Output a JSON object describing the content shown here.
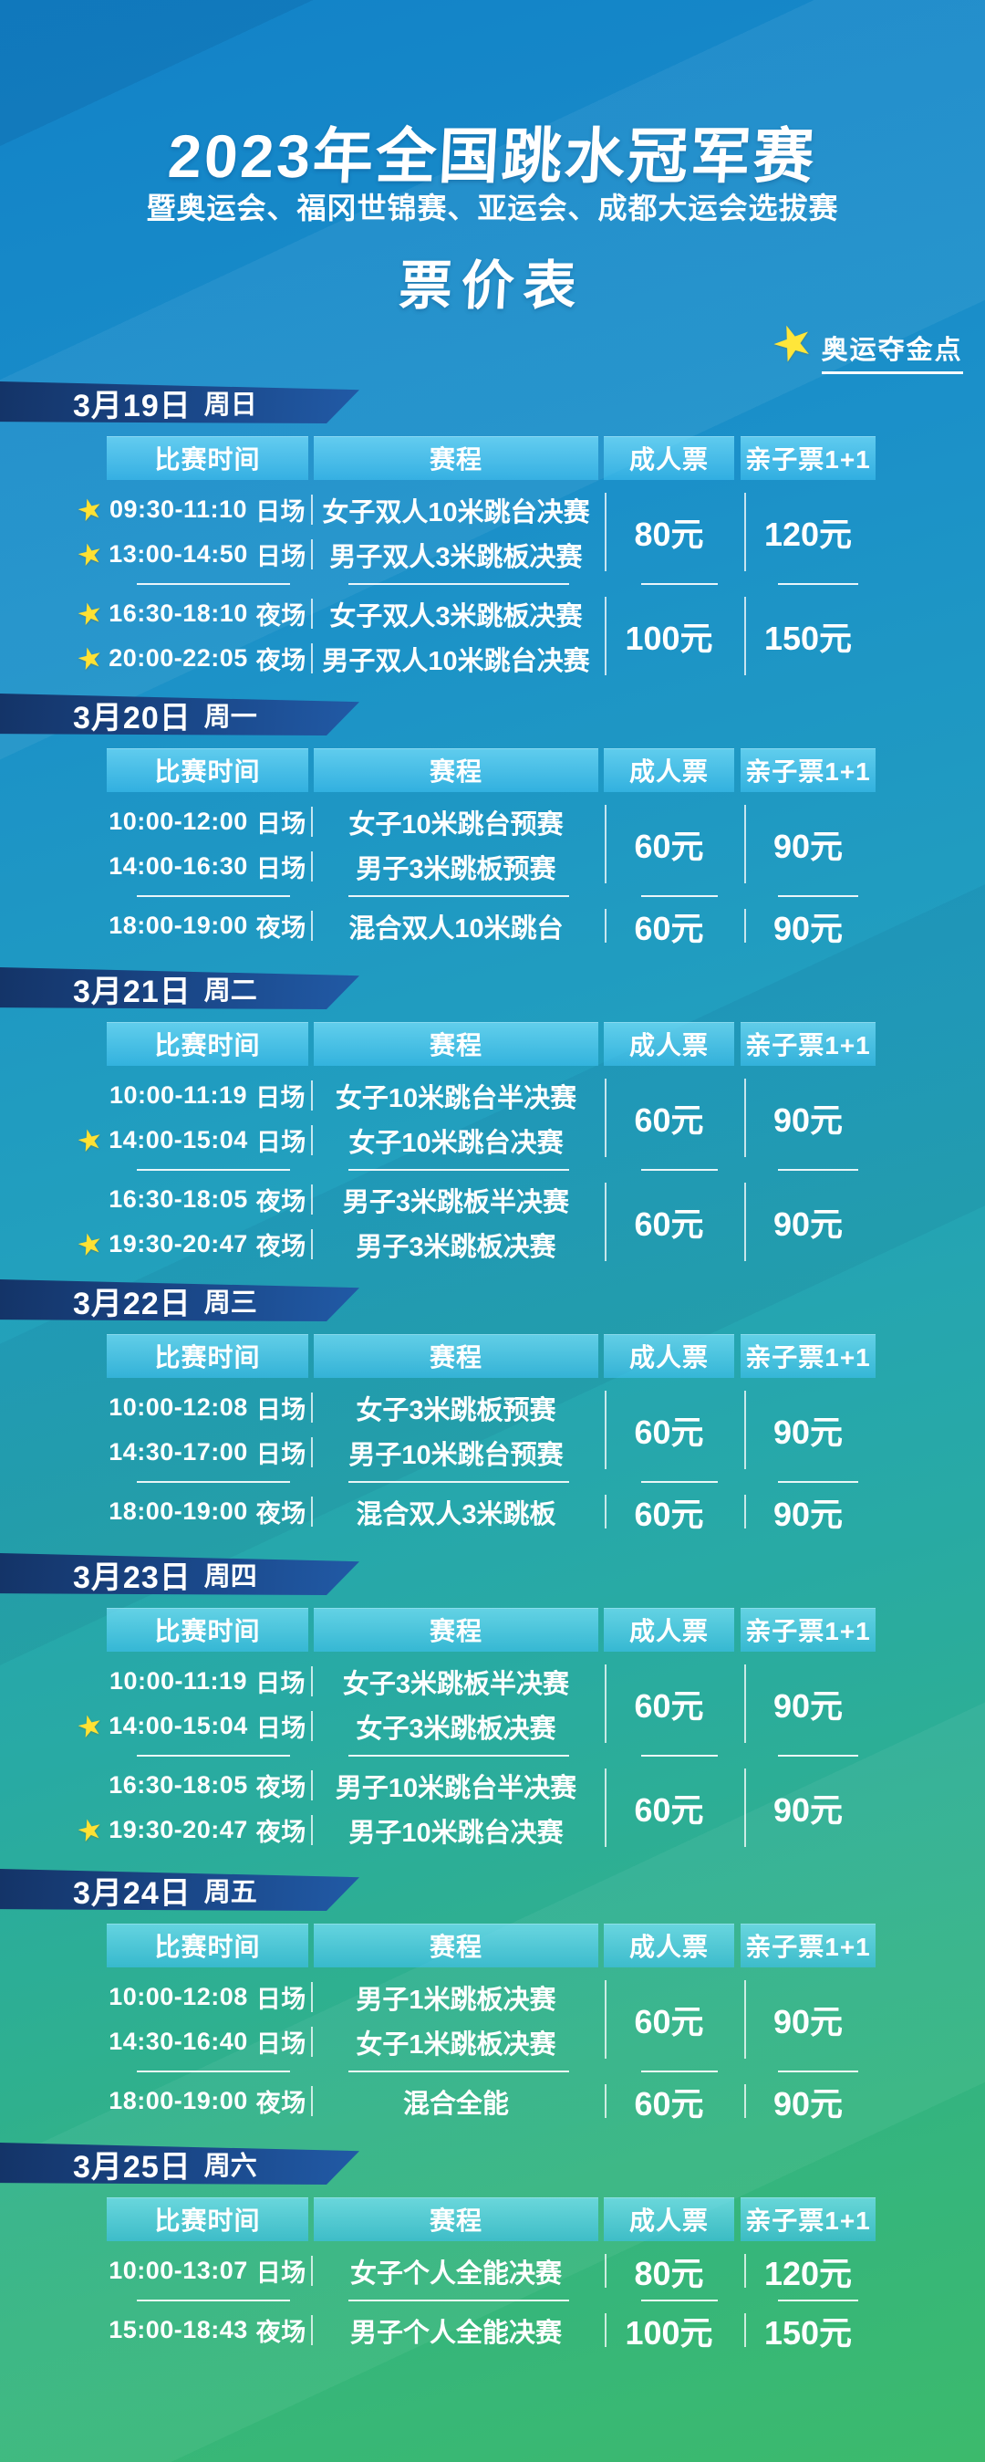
{
  "poster": {
    "title": "2023年全国跳水冠军赛",
    "subtitle": "暨奥运会、福冈世锦赛、亚运会、成都大运会选拔赛",
    "table_title": "票价表",
    "legend": {
      "icon": "gold-star-icon",
      "star_glyph": "★",
      "label": "奥运夺金点"
    }
  },
  "table": {
    "columns": {
      "time": "比赛时间",
      "event": "赛程",
      "adult": "成人票",
      "family": "亲子票1+1"
    }
  },
  "colors": {
    "background_top": "#1282c8",
    "background_bottom": "#3cba6c",
    "banner_navy": "#1b4a8d",
    "header_cell_cyan": "#45b7eb",
    "star_yellow": "#ffe133",
    "text": "#ffffff"
  },
  "days": [
    {
      "date": "3月19日",
      "weekday": "周日",
      "groups": [
        {
          "rows": [
            {
              "star": true,
              "time": "09:30-11:10",
              "session": "日场",
              "event": "女子双人10米跳台决赛"
            },
            {
              "star": true,
              "time": "13:00-14:50",
              "session": "日场",
              "event": "男子双人3米跳板决赛"
            }
          ],
          "adult_price": "80元",
          "family_price": "120元"
        },
        {
          "rows": [
            {
              "star": true,
              "time": "16:30-18:10",
              "session": "夜场",
              "event": "女子双人3米跳板决赛"
            },
            {
              "star": true,
              "time": "20:00-22:05",
              "session": "夜场",
              "event": "男子双人10米跳台决赛"
            }
          ],
          "adult_price": "100元",
          "family_price": "150元"
        }
      ]
    },
    {
      "date": "3月20日",
      "weekday": "周一",
      "groups": [
        {
          "rows": [
            {
              "star": false,
              "time": "10:00-12:00",
              "session": "日场",
              "event": "女子10米跳台预赛"
            },
            {
              "star": false,
              "time": "14:00-16:30",
              "session": "日场",
              "event": "男子3米跳板预赛"
            }
          ],
          "adult_price": "60元",
          "family_price": "90元"
        },
        {
          "rows": [
            {
              "star": false,
              "time": "18:00-19:00",
              "session": "夜场",
              "event": "混合双人10米跳台"
            }
          ],
          "adult_price": "60元",
          "family_price": "90元"
        }
      ]
    },
    {
      "date": "3月21日",
      "weekday": "周二",
      "groups": [
        {
          "rows": [
            {
              "star": false,
              "time": "10:00-11:19",
              "session": "日场",
              "event": "女子10米跳台半决赛"
            },
            {
              "star": true,
              "time": "14:00-15:04",
              "session": "日场",
              "event": "女子10米跳台决赛"
            }
          ],
          "adult_price": "60元",
          "family_price": "90元"
        },
        {
          "rows": [
            {
              "star": false,
              "time": "16:30-18:05",
              "session": "夜场",
              "event": "男子3米跳板半决赛"
            },
            {
              "star": true,
              "time": "19:30-20:47",
              "session": "夜场",
              "event": "男子3米跳板决赛"
            }
          ],
          "adult_price": "60元",
          "family_price": "90元"
        }
      ]
    },
    {
      "date": "3月22日",
      "weekday": "周三",
      "groups": [
        {
          "rows": [
            {
              "star": false,
              "time": "10:00-12:08",
              "session": "日场",
              "event": "女子3米跳板预赛"
            },
            {
              "star": false,
              "time": "14:30-17:00",
              "session": "日场",
              "event": "男子10米跳台预赛"
            }
          ],
          "adult_price": "60元",
          "family_price": "90元"
        },
        {
          "rows": [
            {
              "star": false,
              "time": "18:00-19:00",
              "session": "夜场",
              "event": "混合双人3米跳板"
            }
          ],
          "adult_price": "60元",
          "family_price": "90元"
        }
      ]
    },
    {
      "date": "3月23日",
      "weekday": "周四",
      "groups": [
        {
          "rows": [
            {
              "star": false,
              "time": "10:00-11:19",
              "session": "日场",
              "event": "女子3米跳板半决赛"
            },
            {
              "star": true,
              "time": "14:00-15:04",
              "session": "日场",
              "event": "女子3米跳板决赛"
            }
          ],
          "adult_price": "60元",
          "family_price": "90元"
        },
        {
          "rows": [
            {
              "star": false,
              "time": "16:30-18:05",
              "session": "夜场",
              "event": "男子10米跳台半决赛"
            },
            {
              "star": true,
              "time": "19:30-20:47",
              "session": "夜场",
              "event": "男子10米跳台决赛"
            }
          ],
          "adult_price": "60元",
          "family_price": "90元"
        }
      ]
    },
    {
      "date": "3月24日",
      "weekday": "周五",
      "groups": [
        {
          "rows": [
            {
              "star": false,
              "time": "10:00-12:08",
              "session": "日场",
              "event": "男子1米跳板决赛"
            },
            {
              "star": false,
              "time": "14:30-16:40",
              "session": "日场",
              "event": "女子1米跳板决赛"
            }
          ],
          "adult_price": "60元",
          "family_price": "90元"
        },
        {
          "rows": [
            {
              "star": false,
              "time": "18:00-19:00",
              "session": "夜场",
              "event": "混合全能"
            }
          ],
          "adult_price": "60元",
          "family_price": "90元"
        }
      ]
    },
    {
      "date": "3月25日",
      "weekday": "周六",
      "groups": [
        {
          "rows": [
            {
              "star": false,
              "time": "10:00-13:07",
              "session": "日场",
              "event": "女子个人全能决赛"
            }
          ],
          "adult_price": "80元",
          "family_price": "120元"
        },
        {
          "rows": [
            {
              "star": false,
              "time": "15:00-18:43",
              "session": "夜场",
              "event": "男子个人全能决赛"
            }
          ],
          "adult_price": "100元",
          "family_price": "150元"
        }
      ]
    }
  ]
}
